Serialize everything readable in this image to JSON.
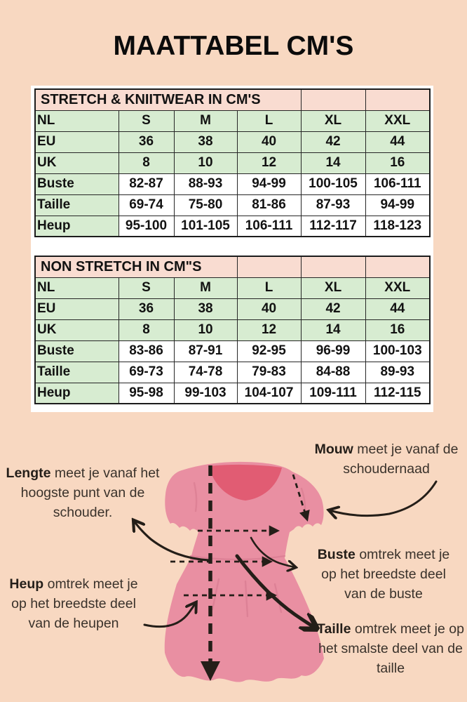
{
  "title": "MAATTABEL CM'S",
  "tables": [
    {
      "title": "STRETCH & KNIITWEAR IN CM'S",
      "title_colspan": 4,
      "rows": [
        {
          "label": "NL",
          "kind": "size",
          "values": [
            "S",
            "M",
            "L",
            "XL",
            "XXL"
          ]
        },
        {
          "label": "EU",
          "kind": "size",
          "values": [
            "36",
            "38",
            "40",
            "42",
            "44"
          ]
        },
        {
          "label": "UK",
          "kind": "size",
          "values": [
            "8",
            "10",
            "12",
            "14",
            "16"
          ]
        },
        {
          "label": "Buste",
          "kind": "measure",
          "values": [
            "82-87",
            "88-93",
            "94-99",
            "100-105",
            "106-111"
          ]
        },
        {
          "label": "Taille",
          "kind": "measure",
          "values": [
            "69-74",
            "75-80",
            "81-86",
            "87-93",
            "94-99"
          ]
        },
        {
          "label": "Heup",
          "kind": "measure",
          "values": [
            "95-100",
            "101-105",
            "106-111",
            "112-117",
            "118-123"
          ]
        }
      ]
    },
    {
      "title": "NON STRETCH IN CM\"S",
      "title_colspan": 3,
      "rows": [
        {
          "label": "NL",
          "kind": "size",
          "values": [
            "S",
            "M",
            "L",
            "XL",
            "XXL"
          ]
        },
        {
          "label": "EU",
          "kind": "size",
          "values": [
            "36",
            "38",
            "40",
            "42",
            "44"
          ]
        },
        {
          "label": "UK",
          "kind": "size",
          "values": [
            "8",
            "10",
            "12",
            "14",
            "16"
          ]
        },
        {
          "label": "Buste",
          "kind": "measure",
          "values": [
            "83-86",
            "87-91",
            "92-95",
            "96-99",
            "100-103"
          ]
        },
        {
          "label": "Taille",
          "kind": "measure",
          "values": [
            "69-73",
            "74-78",
            "79-83",
            "84-88",
            "89-93"
          ]
        },
        {
          "label": "Heup",
          "kind": "measure",
          "values": [
            "95-98",
            "99-103",
            "104-107",
            "109-111",
            "112-115"
          ]
        }
      ]
    }
  ],
  "diagram": {
    "lengte": {
      "word": "Lengte",
      "rest": "meet je vanaf het hoogste punt van de schouder."
    },
    "mouw": {
      "word": "Mouw",
      "rest": "meet je vanaf de schoudernaad"
    },
    "buste": {
      "word": "Buste",
      "rest": "omtrek meet je op het breedste deel van de buste"
    },
    "heup": {
      "word": "Heup",
      "rest": "omtrek meet je op het breedste deel van de heupen"
    },
    "taille": {
      "word": "Taille",
      "rest": "omtrek meet je op het smalste deel van de taille"
    }
  },
  "colors": {
    "background": "#F8D8C1",
    "sheet": "#FFFFFF",
    "header_pink": "#F9DCD1",
    "row_green": "#D7ECD1",
    "border_dark": "#1C1C1C",
    "dress_pink": "#E98FA2",
    "dress_dark": "#E15C73",
    "dress_shade": "#D97D92",
    "ink": "#241E18",
    "text": "#3A322B"
  }
}
